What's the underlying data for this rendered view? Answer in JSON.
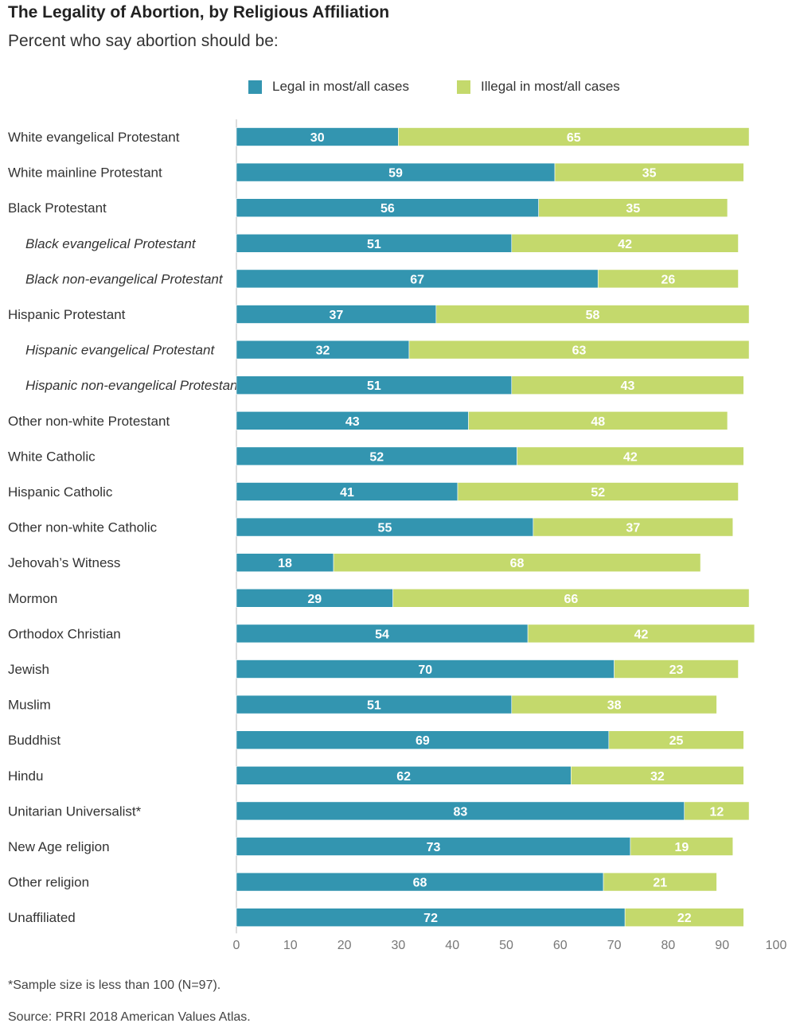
{
  "title": "The Legality of Abortion, by Religious Affiliation",
  "subtitle": "Percent who say abortion should be:",
  "colors": {
    "legal": "#3395b0",
    "illegal": "#c4d96c",
    "axis": "#bbbbbb"
  },
  "footnote": "*Sample size is less than 100 (N=97).",
  "source": "Source: PRRI 2018 American Values Atlas.",
  "chart_data": {
    "type": "bar",
    "orientation": "horizontal",
    "stacked": true,
    "title": "The Legality of Abortion, by Religious Affiliation",
    "subtitle": "Percent who say abortion should be:",
    "xlim": [
      0,
      100
    ],
    "xticks": [
      "0",
      "10",
      "20",
      "30",
      "40",
      "50",
      "60",
      "70",
      "80",
      "90",
      "100"
    ],
    "legend_position": "top",
    "grid": false,
    "categories": [
      "White evangelical Protestant",
      "White mainline Protestant",
      "Black Protestant",
      "Black evangelical Protestant",
      "Black non-evangelical Protestant",
      "Hispanic Protestant",
      "Hispanic evangelical Protestant",
      "Hispanic non-evangelical Protestant",
      "Other non-white Protestant",
      "White Catholic",
      "Hispanic Catholic",
      "Other non-white Catholic",
      "Jehovah’s Witness",
      "Mormon",
      "Orthodox Christian",
      "Jewish",
      "Muslim",
      "Buddhist",
      "Hindu",
      "Unitarian Universalist*",
      "New Age religion",
      "Other religion",
      "Unaffiliated"
    ],
    "subcategory_flags": [
      false,
      false,
      false,
      true,
      true,
      false,
      true,
      true,
      false,
      false,
      false,
      false,
      false,
      false,
      false,
      false,
      false,
      false,
      false,
      false,
      false,
      false,
      false
    ],
    "series": [
      {
        "name": "Legal in most/all cases",
        "values": [
          30,
          59,
          56,
          51,
          67,
          37,
          32,
          51,
          43,
          52,
          41,
          55,
          18,
          29,
          54,
          70,
          51,
          69,
          62,
          83,
          73,
          68,
          72
        ]
      },
      {
        "name": "Illegal in most/all cases",
        "values": [
          65,
          35,
          35,
          42,
          26,
          58,
          63,
          43,
          48,
          42,
          52,
          37,
          68,
          66,
          42,
          23,
          38,
          25,
          32,
          12,
          19,
          21,
          22
        ]
      }
    ]
  }
}
